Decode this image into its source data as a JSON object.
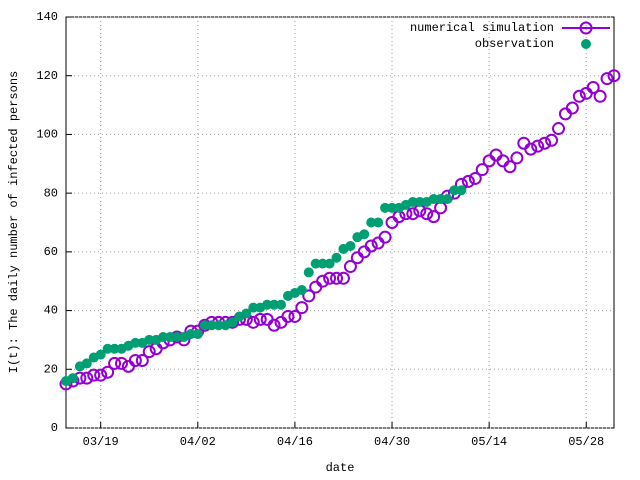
{
  "chart_data": {
    "type": "scatter",
    "xlabel": "date",
    "ylabel": "I(t): The daily number of infected persons",
    "xlim": [
      "03/14",
      "06/01"
    ],
    "xticks": [
      "03/19",
      "04/02",
      "04/16",
      "04/30",
      "05/14",
      "05/28"
    ],
    "ylim": [
      0,
      140
    ],
    "yticks": [
      0,
      20,
      40,
      60,
      80,
      100,
      120,
      140
    ],
    "grid": true,
    "legend": "top-right",
    "series": [
      {
        "name": "numerical simulation",
        "color": "#9400d3",
        "marker": "open-circle",
        "x": [
          "03/14",
          "03/15",
          "03/16",
          "03/17",
          "03/18",
          "03/19",
          "03/20",
          "03/21",
          "03/22",
          "03/23",
          "03/24",
          "03/25",
          "03/26",
          "03/27",
          "03/28",
          "03/29",
          "03/30",
          "03/31",
          "04/01",
          "04/02",
          "04/03",
          "04/04",
          "04/05",
          "04/06",
          "04/07",
          "04/08",
          "04/09",
          "04/10",
          "04/11",
          "04/12",
          "04/13",
          "04/14",
          "04/15",
          "04/16",
          "04/17",
          "04/18",
          "04/19",
          "04/20",
          "04/21",
          "04/22",
          "04/23",
          "04/24",
          "04/25",
          "04/26",
          "04/27",
          "04/28",
          "04/29",
          "04/30",
          "05/01",
          "05/02",
          "05/03",
          "05/04",
          "05/05",
          "05/06",
          "05/07",
          "05/08",
          "05/09",
          "05/10",
          "05/11",
          "05/12",
          "05/13",
          "05/14",
          "05/15",
          "05/16",
          "05/17",
          "05/18",
          "05/19",
          "05/20",
          "05/21",
          "05/22",
          "05/23",
          "05/24",
          "05/25",
          "05/26",
          "05/27",
          "05/28",
          "05/29",
          "05/30",
          "05/31",
          "06/01"
        ],
        "values": [
          15,
          16,
          17,
          17,
          18,
          18,
          19,
          22,
          22,
          21,
          23,
          23,
          26,
          27,
          29,
          30,
          31,
          30,
          33,
          33,
          35,
          36,
          36,
          36,
          36,
          37,
          37,
          36,
          37,
          37,
          35,
          36,
          38,
          38,
          41,
          45,
          48,
          50,
          51,
          51,
          51,
          55,
          58,
          60,
          62,
          63,
          65,
          70,
          72,
          73,
          73,
          74,
          73,
          72,
          75,
          79,
          80,
          83,
          84,
          85,
          88,
          91,
          93,
          91,
          89,
          92,
          97,
          95,
          96,
          97,
          98,
          102,
          107,
          109,
          113,
          114,
          116,
          113,
          119,
          120
        ]
      },
      {
        "name": "observation",
        "color": "#009e73",
        "marker": "filled-circle",
        "x": [
          "03/14",
          "03/15",
          "03/16",
          "03/17",
          "03/18",
          "03/19",
          "03/20",
          "03/21",
          "03/22",
          "03/23",
          "03/24",
          "03/25",
          "03/26",
          "03/27",
          "03/28",
          "03/29",
          "03/30",
          "03/31",
          "04/01",
          "04/02",
          "04/03",
          "04/04",
          "04/05",
          "04/06",
          "04/07",
          "04/08",
          "04/09",
          "04/10",
          "04/11",
          "04/12",
          "04/13",
          "04/14",
          "04/15",
          "04/16",
          "04/17",
          "04/18",
          "04/19",
          "04/20",
          "04/21",
          "04/22",
          "04/23",
          "04/24",
          "04/25",
          "04/26",
          "04/27",
          "04/28",
          "04/29",
          "04/30",
          "05/01",
          "05/02",
          "05/03",
          "05/04",
          "05/05",
          "05/06",
          "05/07",
          "05/08",
          "05/09",
          "05/10"
        ],
        "values": [
          16,
          17,
          21,
          22,
          24,
          25,
          27,
          27,
          27,
          28,
          29,
          29,
          30,
          30,
          31,
          31,
          31,
          31,
          32,
          32,
          35,
          35,
          35,
          35,
          36,
          38,
          39,
          41,
          41,
          42,
          42,
          42,
          45,
          46,
          47,
          53,
          56,
          56,
          56,
          58,
          61,
          62,
          65,
          66,
          70,
          70,
          75,
          75,
          75,
          76,
          77,
          77,
          77,
          78,
          78,
          78,
          81,
          81
        ]
      }
    ]
  }
}
